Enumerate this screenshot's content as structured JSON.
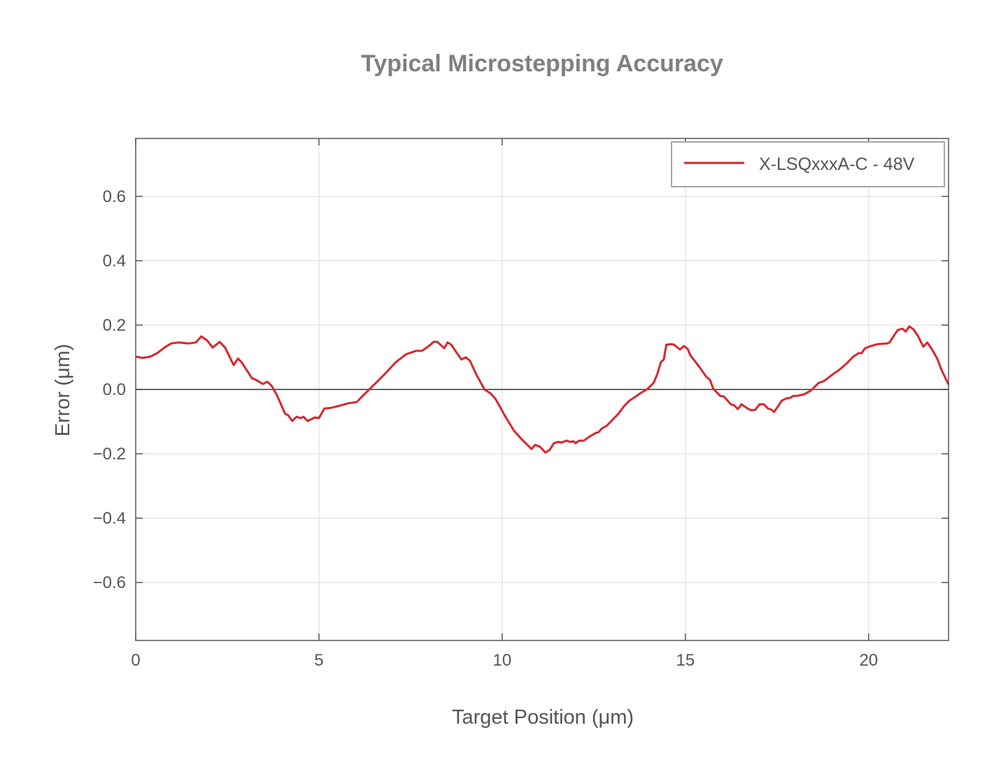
{
  "chart_data": {
    "type": "line",
    "title": "Typical Microstepping Accuracy",
    "xlabel": "Target Position (μm)",
    "ylabel": "Error (μm)",
    "xlim": [
      0,
      22.18
    ],
    "ylim": [
      -0.78,
      0.78
    ],
    "xticks": [
      0,
      5,
      10,
      15,
      20
    ],
    "xtick_labels": [
      "0",
      "5",
      "10",
      "15",
      "20"
    ],
    "yticks": [
      0.6,
      0.4,
      0.2,
      0.0,
      -0.2,
      -0.4,
      -0.6
    ],
    "ytick_labels": [
      "0.6",
      "0.4",
      "0.2",
      "0.0",
      "−0.2",
      "−0.4",
      "−0.6"
    ],
    "grid": true,
    "zero_line": true,
    "legend_position": "top-right",
    "series": [
      {
        "name": "X-LSQxxxA-C - 48V",
        "color": "#d9262c",
        "x": [
          0,
          0.19,
          0.4,
          0.59,
          0.78,
          0.97,
          1.16,
          1.45,
          1.64,
          1.79,
          1.95,
          2.1,
          2.29,
          2.44,
          2.67,
          2.79,
          2.9,
          3.17,
          3.28,
          3.47,
          3.59,
          3.7,
          3.85,
          4.08,
          4.16,
          4.27,
          4.39,
          4.5,
          4.58,
          4.69,
          4.89,
          5.0,
          5.15,
          5.34,
          5.65,
          5.8,
          6.03,
          6.22,
          6.41,
          6.7,
          6.89,
          7.08,
          7.37,
          7.65,
          7.81,
          8.0,
          8.13,
          8.23,
          8.42,
          8.51,
          8.61,
          8.74,
          8.89,
          9.01,
          9.12,
          9.31,
          9.52,
          9.69,
          9.81,
          9.94,
          10.08,
          10.32,
          10.51,
          10.8,
          10.9,
          11.03,
          11.18,
          11.3,
          11.41,
          11.53,
          11.62,
          11.76,
          11.85,
          11.95,
          12.0,
          12.1,
          12.23,
          12.39,
          12.56,
          12.63,
          12.71,
          12.85,
          13.15,
          13.34,
          13.47,
          13.59,
          13.78,
          13.95,
          14.07,
          14.14,
          14.24,
          14.33,
          14.41,
          14.48,
          14.62,
          14.69,
          14.85,
          14.96,
          15.06,
          15.13,
          15.38,
          15.57,
          15.67,
          15.76,
          15.95,
          16.05,
          16.24,
          16.34,
          16.43,
          16.53,
          16.72,
          16.81,
          16.91,
          17.02,
          17.14,
          17.25,
          17.35,
          17.42,
          17.63,
          17.75,
          17.86,
          17.94,
          18.05,
          18.24,
          18.44,
          18.63,
          18.78,
          19.01,
          19.2,
          19.39,
          19.58,
          19.73,
          19.81,
          19.9,
          20.06,
          20.25,
          20.5,
          20.57,
          20.73,
          20.8,
          20.92,
          21.01,
          21.11,
          21.22,
          21.34,
          21.49,
          21.6,
          21.72,
          21.87,
          21.98,
          22.18
        ],
        "y": [
          0.102,
          0.098,
          0.102,
          0.113,
          0.13,
          0.143,
          0.146,
          0.143,
          0.146,
          0.165,
          0.152,
          0.13,
          0.148,
          0.13,
          0.076,
          0.096,
          0.083,
          0.035,
          0.03,
          0.017,
          0.024,
          0.013,
          -0.017,
          -0.076,
          -0.08,
          -0.098,
          -0.085,
          -0.089,
          -0.085,
          -0.098,
          -0.087,
          -0.089,
          -0.059,
          -0.057,
          -0.048,
          -0.043,
          -0.039,
          -0.017,
          0.004,
          0.037,
          0.059,
          0.083,
          0.109,
          0.12,
          0.12,
          0.135,
          0.148,
          0.148,
          0.128,
          0.146,
          0.139,
          0.117,
          0.093,
          0.1,
          0.089,
          0.043,
          0.0,
          -0.013,
          -0.028,
          -0.054,
          -0.083,
          -0.128,
          -0.152,
          -0.185,
          -0.172,
          -0.178,
          -0.196,
          -0.187,
          -0.167,
          -0.163,
          -0.165,
          -0.159,
          -0.163,
          -0.161,
          -0.167,
          -0.159,
          -0.159,
          -0.146,
          -0.135,
          -0.133,
          -0.122,
          -0.113,
          -0.078,
          -0.05,
          -0.035,
          -0.026,
          -0.011,
          0.0,
          0.013,
          0.022,
          0.05,
          0.085,
          0.093,
          0.139,
          0.141,
          0.139,
          0.124,
          0.135,
          0.126,
          0.107,
          0.07,
          0.039,
          0.03,
          0.002,
          -0.02,
          -0.022,
          -0.046,
          -0.05,
          -0.061,
          -0.046,
          -0.061,
          -0.065,
          -0.063,
          -0.046,
          -0.046,
          -0.059,
          -0.063,
          -0.07,
          -0.035,
          -0.028,
          -0.026,
          -0.02,
          -0.02,
          -0.015,
          -0.002,
          0.02,
          0.026,
          0.046,
          0.061,
          0.08,
          0.102,
          0.113,
          0.113,
          0.128,
          0.135,
          0.141,
          0.143,
          0.146,
          0.174,
          0.185,
          0.189,
          0.18,
          0.196,
          0.187,
          0.167,
          0.133,
          0.146,
          0.126,
          0.096,
          0.063,
          0.015
        ]
      }
    ]
  }
}
